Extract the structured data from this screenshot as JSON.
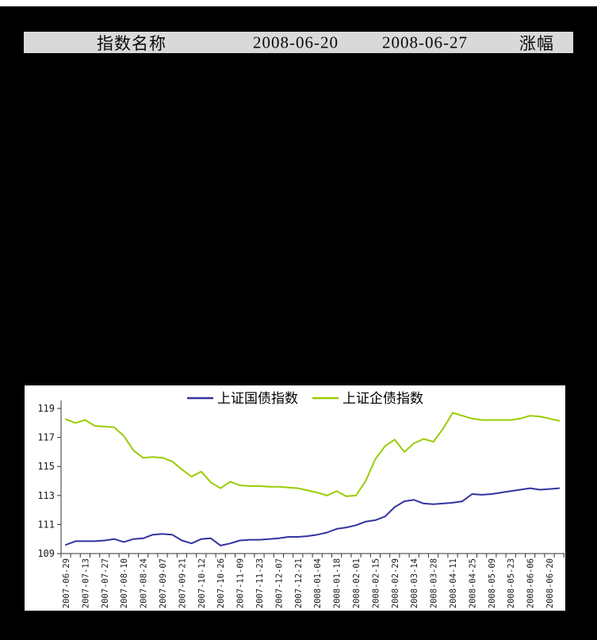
{
  "table_header": {
    "columns": [
      "指数名称",
      "2008-06-20",
      "2008-06-27",
      "涨幅"
    ]
  },
  "chart_data": {
    "type": "line",
    "title": "",
    "legend_position": "top",
    "grid": false,
    "ylim": [
      109,
      119
    ],
    "yticks": [
      119,
      117,
      115,
      113,
      111,
      109
    ],
    "x_label_every_n_points": 2,
    "x_labels": [
      "2007-06-29",
      "2007-07-13",
      "2007-07-27",
      "2007-08-10",
      "2007-08-24",
      "2007-09-07",
      "2007-09-21",
      "2007-10-12",
      "2007-10-26",
      "2007-11-09",
      "2007-11-23",
      "2007-12-07",
      "2007-12-21",
      "2008-01-04",
      "2008-01-18",
      "2008-02-01",
      "2008-02-15",
      "2008-02-29",
      "2008-03-14",
      "2008-03-28",
      "2008-04-11",
      "2008-04-25",
      "2008-05-09",
      "2008-05-23",
      "2008-06-06",
      "2008-06-20"
    ],
    "series": [
      {
        "name": "上证国债指数",
        "color": "#3333A0",
        "values": [
          109.6,
          109.85,
          109.85,
          109.85,
          109.9,
          110.0,
          109.8,
          110.0,
          110.05,
          110.3,
          110.35,
          110.3,
          109.9,
          109.7,
          110.0,
          110.05,
          109.55,
          109.7,
          109.9,
          109.95,
          109.95,
          110.0,
          110.05,
          110.15,
          110.15,
          110.2,
          110.3,
          110.45,
          110.7,
          110.8,
          110.95,
          111.2,
          111.3,
          111.55,
          112.2,
          112.6,
          112.7,
          112.45,
          112.4,
          112.45,
          112.5,
          112.6,
          113.1,
          113.05,
          113.1,
          113.2,
          113.3,
          113.4,
          113.5,
          113.4,
          113.45,
          113.5
        ]
      },
      {
        "name": "上证企债指数",
        "color": "#99CC00",
        "values": [
          118.25,
          118.0,
          118.2,
          117.8,
          117.75,
          117.7,
          117.1,
          116.1,
          115.6,
          115.65,
          115.6,
          115.35,
          114.8,
          114.3,
          114.65,
          113.9,
          113.5,
          113.95,
          113.7,
          113.65,
          113.65,
          113.6,
          113.6,
          113.55,
          113.5,
          113.35,
          113.2,
          113.0,
          113.3,
          112.95,
          113.0,
          114.0,
          115.5,
          116.4,
          116.85,
          116.0,
          116.6,
          116.9,
          116.7,
          117.6,
          118.7,
          118.5,
          118.3,
          118.2,
          118.2,
          118.2,
          118.2,
          118.3,
          118.5,
          118.45,
          118.3,
          118.15
        ]
      }
    ]
  }
}
